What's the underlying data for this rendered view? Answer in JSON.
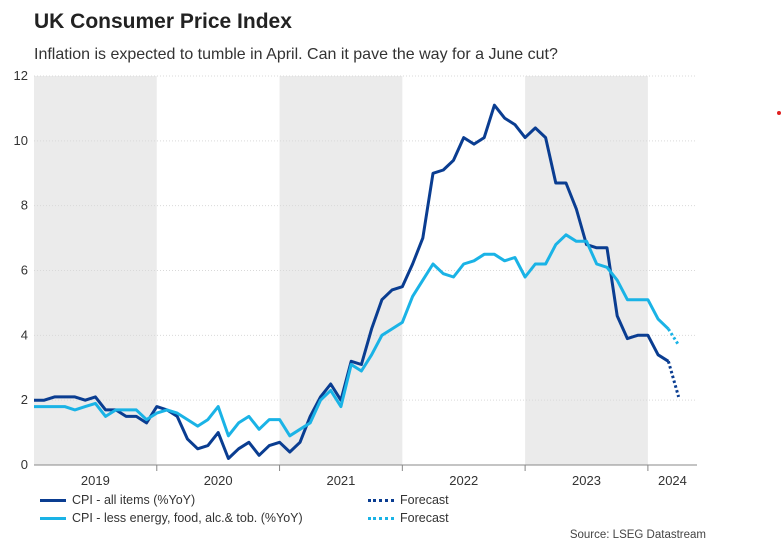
{
  "title": "UK Consumer Price Index",
  "subtitle": "Inflation is expected to tumble in April. Can it pave the way for a June cut?",
  "source": "Source: LSEG Datastream",
  "marker_color": "#e02020",
  "chart_data": {
    "type": "line",
    "title": "UK Consumer Price Index",
    "subtitle": "Inflation is expected to tumble in April. Can it pave the way for a June cut?",
    "xlabel": "",
    "ylabel": "",
    "ylim": [
      0,
      12
    ],
    "yticks": [
      "0",
      "2",
      "4",
      "6",
      "8",
      "10",
      "12"
    ],
    "xlim": [
      2019.0,
      2024.4
    ],
    "xticks": [
      "2019",
      "2020",
      "2021",
      "2022",
      "2023",
      "2024"
    ],
    "shaded_years": [
      "2019",
      "2021",
      "2023"
    ],
    "grid": "horizontal",
    "legend_position": "bottom",
    "series": [
      {
        "name": "CPI - all items (%YoY)",
        "color": "#0a3d91",
        "style": "solid",
        "x": [
          "2019-01",
          "2019-02",
          "2019-03",
          "2019-04",
          "2019-05",
          "2019-06",
          "2019-07",
          "2019-08",
          "2019-09",
          "2019-10",
          "2019-11",
          "2019-12",
          "2020-01",
          "2020-02",
          "2020-03",
          "2020-04",
          "2020-05",
          "2020-06",
          "2020-07",
          "2020-08",
          "2020-09",
          "2020-10",
          "2020-11",
          "2020-12",
          "2021-01",
          "2021-02",
          "2021-03",
          "2021-04",
          "2021-05",
          "2021-06",
          "2021-07",
          "2021-08",
          "2021-09",
          "2021-10",
          "2021-11",
          "2021-12",
          "2022-01",
          "2022-02",
          "2022-03",
          "2022-04",
          "2022-05",
          "2022-06",
          "2022-07",
          "2022-08",
          "2022-09",
          "2022-10",
          "2022-11",
          "2022-12",
          "2023-01",
          "2023-02",
          "2023-03",
          "2023-04",
          "2023-05",
          "2023-06",
          "2023-07",
          "2023-08",
          "2023-09",
          "2023-10",
          "2023-11",
          "2023-12",
          "2024-01",
          "2024-02",
          "2024-03"
        ],
        "values": [
          2.0,
          2.0,
          2.1,
          2.1,
          2.1,
          2.0,
          2.1,
          1.7,
          1.7,
          1.5,
          1.5,
          1.3,
          1.8,
          1.7,
          1.5,
          0.8,
          0.5,
          0.6,
          1.0,
          0.2,
          0.5,
          0.7,
          0.3,
          0.6,
          0.7,
          0.4,
          0.7,
          1.5,
          2.1,
          2.5,
          2.0,
          3.2,
          3.1,
          4.2,
          5.1,
          5.4,
          5.5,
          6.2,
          7.0,
          9.0,
          9.1,
          9.4,
          10.1,
          9.9,
          10.1,
          11.1,
          10.7,
          10.5,
          10.1,
          10.4,
          10.1,
          8.7,
          8.7,
          7.9,
          6.8,
          6.7,
          6.7,
          4.6,
          3.9,
          4.0,
          4.0,
          3.4,
          3.2
        ]
      },
      {
        "name": "CPI - less energy, food, alc.& tob. (%YoY)",
        "color": "#1ab3e6",
        "style": "solid",
        "x": [
          "2019-01",
          "2019-02",
          "2019-03",
          "2019-04",
          "2019-05",
          "2019-06",
          "2019-07",
          "2019-08",
          "2019-09",
          "2019-10",
          "2019-11",
          "2019-12",
          "2020-01",
          "2020-02",
          "2020-03",
          "2020-04",
          "2020-05",
          "2020-06",
          "2020-07",
          "2020-08",
          "2020-09",
          "2020-10",
          "2020-11",
          "2020-12",
          "2021-01",
          "2021-02",
          "2021-03",
          "2021-04",
          "2021-05",
          "2021-06",
          "2021-07",
          "2021-08",
          "2021-09",
          "2021-10",
          "2021-11",
          "2021-12",
          "2022-01",
          "2022-02",
          "2022-03",
          "2022-04",
          "2022-05",
          "2022-06",
          "2022-07",
          "2022-08",
          "2022-09",
          "2022-10",
          "2022-11",
          "2022-12",
          "2023-01",
          "2023-02",
          "2023-03",
          "2023-04",
          "2023-05",
          "2023-06",
          "2023-07",
          "2023-08",
          "2023-09",
          "2023-10",
          "2023-11",
          "2023-12",
          "2024-01",
          "2024-02",
          "2024-03"
        ],
        "values": [
          1.8,
          1.8,
          1.8,
          1.8,
          1.7,
          1.8,
          1.9,
          1.5,
          1.7,
          1.7,
          1.7,
          1.4,
          1.6,
          1.7,
          1.6,
          1.4,
          1.2,
          1.4,
          1.8,
          0.9,
          1.3,
          1.5,
          1.1,
          1.4,
          1.4,
          0.9,
          1.1,
          1.3,
          2.0,
          2.3,
          1.8,
          3.1,
          2.9,
          3.4,
          4.0,
          4.2,
          4.4,
          5.2,
          5.7,
          6.2,
          5.9,
          5.8,
          6.2,
          6.3,
          6.5,
          6.5,
          6.3,
          6.4,
          5.8,
          6.2,
          6.2,
          6.8,
          7.1,
          6.9,
          6.9,
          6.2,
          6.1,
          5.7,
          5.1,
          5.1,
          5.1,
          4.5,
          4.2
        ]
      },
      {
        "name": "Forecast",
        "color": "#0a3d91",
        "style": "dotted",
        "x": [
          "2024-03",
          "2024-04"
        ],
        "values": [
          3.2,
          2.1
        ]
      },
      {
        "name": "Forecast",
        "color": "#1ab3e6",
        "style": "dotted",
        "x": [
          "2024-03",
          "2024-04"
        ],
        "values": [
          4.2,
          3.7
        ]
      }
    ]
  }
}
